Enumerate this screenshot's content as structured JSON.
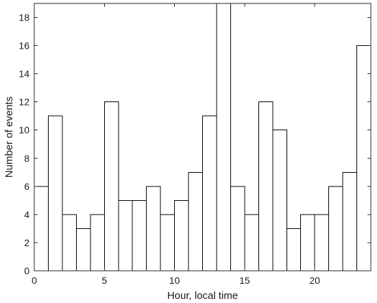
{
  "chart_data": {
    "type": "bar",
    "title": "",
    "xlabel": "Hour, local time",
    "ylabel": "Number of events",
    "xlim": [
      0,
      24
    ],
    "ylim": [
      0,
      19
    ],
    "xticks": [
      0,
      5,
      10,
      15,
      20
    ],
    "yticks": [
      0,
      2,
      4,
      6,
      8,
      10,
      12,
      14,
      16,
      18
    ],
    "bin_width": 1,
    "x": [
      0.5,
      1.5,
      2.5,
      3.5,
      4.5,
      5.5,
      6.5,
      7.5,
      8.5,
      9.5,
      10.5,
      11.5,
      12.5,
      13.5,
      14.5,
      15.5,
      16.5,
      17.5,
      18.5,
      19.5,
      20.5,
      21.5,
      22.5,
      23.5
    ],
    "values": [
      6,
      11,
      4,
      3,
      4,
      12,
      5,
      5,
      6,
      4,
      5,
      7,
      11,
      19,
      6,
      4,
      12,
      10,
      3,
      4,
      4,
      6,
      7,
      16
    ],
    "grid": false,
    "legend": "none",
    "bar_fill": "#ffffff",
    "bar_edge": "#000000"
  }
}
